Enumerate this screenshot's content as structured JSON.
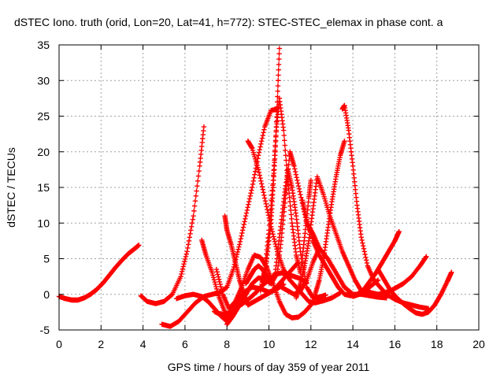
{
  "chart_data": {
    "type": "scatter",
    "title": "dSTEC Iono. truth (orid, Lon=20, Lat=41, h=772): STEC-STEC_elemax in phase cont. a",
    "xlabel": "GPS time / hours of day 359 of year 2011",
    "ylabel": "dSTEC  / TECUs",
    "xlim": [
      0,
      20
    ],
    "ylim": [
      -5,
      35
    ],
    "xticks": [
      0,
      2,
      4,
      6,
      8,
      10,
      12,
      14,
      16,
      18,
      20
    ],
    "yticks": [
      -5,
      0,
      5,
      10,
      15,
      20,
      25,
      30,
      35
    ],
    "grid": true,
    "marker": "plus",
    "color": "#ff0000",
    "series": [
      {
        "x": [
          0.0,
          0.3,
          0.6,
          0.9,
          1.2,
          1.5,
          1.8,
          2.1,
          2.4,
          2.7,
          3.0,
          3.3,
          3.6,
          3.8
        ],
        "y": [
          -0.3,
          -0.6,
          -0.8,
          -0.8,
          -0.5,
          0.0,
          0.7,
          1.6,
          2.7,
          3.8,
          4.8,
          5.7,
          6.4,
          6.9
        ]
      },
      {
        "x": [
          3.9,
          4.2,
          4.6,
          5.0,
          5.4,
          5.8,
          6.1,
          6.4,
          6.7,
          6.9
        ],
        "y": [
          -0.2,
          -1.0,
          -1.3,
          -1.0,
          0.0,
          2.5,
          6.0,
          11.0,
          18.0,
          23.5
        ]
      },
      {
        "x": [
          4.9,
          5.3,
          5.7,
          6.1,
          6.5,
          6.9,
          7.3,
          7.7,
          8.0,
          8.3,
          8.6,
          8.9,
          9.2,
          9.5,
          9.8,
          10.1,
          10.4
        ],
        "y": [
          -4.2,
          -4.5,
          -3.8,
          -2.5,
          -1.2,
          -0.3,
          0.0,
          0.3,
          1.0,
          3.5,
          7.0,
          11.0,
          15.0,
          19.5,
          23.5,
          25.8,
          26.0
        ]
      },
      {
        "x": [
          5.6,
          6.0,
          6.4,
          6.8,
          7.1,
          7.4,
          7.7,
          8.0
        ],
        "y": [
          -0.6,
          -0.2,
          0.0,
          -0.3,
          -1.0,
          -2.0,
          -3.0,
          -3.8
        ]
      },
      {
        "x": [
          6.8,
          7.0,
          7.3,
          7.6,
          7.9,
          8.1,
          8.4,
          8.8,
          9.2,
          9.6,
          10.0,
          10.4,
          10.7
        ],
        "y": [
          7.6,
          5.5,
          3.0,
          -0.2,
          -2.5,
          -3.5,
          -1.5,
          0.3,
          1.0,
          0.8,
          0.3,
          0.8,
          1.4
        ]
      },
      {
        "x": [
          7.4,
          7.6,
          7.9,
          8.2,
          8.5,
          8.8,
          9.1,
          9.4,
          9.7,
          10.0,
          10.3,
          10.6,
          10.9,
          11.2,
          11.5,
          11.8
        ],
        "y": [
          -2.4,
          -2.7,
          -2.8,
          -2.4,
          -1.8,
          -1.2,
          -0.5,
          0.3,
          1.3,
          2.0,
          2.8,
          3.0,
          2.8,
          2.5,
          2.2,
          1.6
        ]
      },
      {
        "x": [
          7.5,
          7.8,
          8.1,
          8.4,
          8.7,
          9.0,
          9.3,
          9.6,
          9.9,
          10.2,
          10.5,
          10.8,
          11.1,
          11.4,
          11.7,
          12.0
        ],
        "y": [
          3.5,
          0.0,
          -2.0,
          -1.0,
          1.0,
          3.5,
          5.5,
          5.2,
          3.8,
          1.5,
          -1.0,
          -2.8,
          -3.3,
          -3.2,
          -2.5,
          -1.5
        ]
      },
      {
        "x": [
          7.9,
          8.0,
          8.2,
          8.4,
          8.6,
          8.8,
          9.0,
          9.3,
          9.6,
          9.9,
          10.2,
          10.5,
          10.8,
          11.1,
          11.4
        ],
        "y": [
          11.0,
          9.0,
          7.0,
          4.5,
          2.0,
          0.0,
          -1.5,
          -1.0,
          -0.5,
          0.0,
          0.5,
          1.5,
          2.5,
          3.5,
          4.5
        ]
      },
      {
        "x": [
          8.0,
          8.3,
          8.6,
          8.9,
          9.2,
          9.5,
          9.8,
          10.1,
          10.4,
          10.6,
          10.8,
          11.0,
          11.2,
          11.5,
          11.8,
          12.1,
          12.4,
          12.8,
          13.2,
          13.6,
          14.0
        ],
        "y": [
          -4.2,
          -3.0,
          -1.5,
          0.0,
          1.5,
          2.3,
          2.1,
          1.5,
          3.0,
          8.0,
          14.0,
          20.0,
          18.0,
          14.0,
          10.0,
          8.5,
          6.5,
          5.0,
          3.0,
          1.0,
          0.0
        ]
      },
      {
        "x": [
          8.9,
          9.1,
          9.3,
          9.5,
          9.7,
          9.9,
          10.1,
          10.3,
          10.5,
          10.7,
          10.9,
          11.1,
          11.3,
          11.5,
          11.8,
          12.1,
          12.4,
          12.7
        ],
        "y": [
          1.5,
          2.5,
          3.5,
          4.0,
          3.5,
          2.5,
          1.5,
          3.0,
          8.0,
          13.0,
          17.5,
          15.0,
          11.0,
          6.0,
          1.0,
          -0.5,
          -0.4,
          -0.1
        ]
      },
      {
        "x": [
          9.0,
          9.2,
          9.5,
          9.8,
          10.1,
          10.4,
          10.7,
          11.0,
          11.3,
          11.6,
          11.9,
          12.2,
          12.6,
          13.0,
          13.4
        ],
        "y": [
          21.5,
          20.5,
          17.5,
          13.5,
          9.5,
          6.0,
          3.5,
          2.0,
          1.0,
          0.0,
          -1.0,
          -1.2,
          -0.9,
          -0.5,
          0.2
        ]
      },
      {
        "x": [
          9.6,
          9.8,
          10.0,
          10.2,
          10.35,
          10.5,
          10.7,
          10.9,
          11.1,
          11.3,
          11.5
        ],
        "y": [
          0.5,
          3.5,
          9.0,
          16.0,
          23.0,
          27.5,
          23.0,
          16.0,
          10.0,
          5.5,
          3.0
        ]
      },
      {
        "x": [
          9.7,
          9.9,
          10.1,
          10.2,
          10.3,
          10.4,
          10.5
        ],
        "y": [
          1.8,
          5.0,
          10.0,
          15.0,
          20.0,
          27.0,
          34.5
        ]
      },
      {
        "x": [
          10.6,
          10.9,
          11.2,
          11.5,
          11.8,
          12.1,
          12.4,
          12.8,
          13.2,
          13.6,
          14.0,
          14.4,
          14.8,
          15.2,
          15.6
        ],
        "y": [
          1.0,
          0.5,
          0.0,
          0.5,
          2.0,
          4.5,
          6.5,
          5.0,
          3.0,
          1.0,
          0.0,
          0.0,
          -0.2,
          -0.4,
          -0.5
        ]
      },
      {
        "x": [
          11.3,
          11.5,
          11.7,
          11.9,
          12.1,
          12.3,
          12.6,
          12.9,
          13.2,
          13.5,
          13.8,
          14.1,
          14.4,
          14.8,
          15.2
        ],
        "y": [
          -0.5,
          1.5,
          4.0,
          7.5,
          12.0,
          16.5,
          14.0,
          11.0,
          8.5,
          6.0,
          4.0,
          2.0,
          0.5,
          1.0,
          2.0
        ]
      },
      {
        "x": [
          11.5,
          11.7,
          11.9,
          12.0
        ],
        "y": [
          3.0,
          8.0,
          13.5,
          16.0
        ]
      },
      {
        "x": [
          11.6,
          11.8,
          12.1,
          12.4,
          12.7,
          13.0,
          13.3,
          13.6,
          13.9,
          14.2,
          14.5,
          14.8,
          15.1,
          15.4,
          15.7,
          16.0,
          16.2
        ],
        "y": [
          13.2,
          10.5,
          7.5,
          5.5,
          4.0,
          2.5,
          1.0,
          0.0,
          -0.2,
          0.0,
          0.6,
          1.8,
          3.0,
          4.5,
          6.0,
          7.5,
          8.8
        ]
      },
      {
        "x": [
          12.2,
          12.4,
          12.6,
          12.8,
          13.0,
          13.2,
          13.4,
          13.6
        ],
        "y": [
          0.0,
          2.0,
          5.0,
          9.0,
          13.0,
          16.5,
          19.5,
          21.5
        ]
      },
      {
        "x": [
          13.5,
          13.6,
          13.8,
          14.0,
          14.2,
          14.4,
          14.7,
          15.0,
          15.3,
          15.6,
          16.0,
          16.4,
          16.8,
          17.2,
          17.6
        ],
        "y": [
          26.0,
          26.5,
          23.0,
          18.0,
          12.5,
          8.0,
          4.0,
          2.0,
          1.0,
          0.0,
          -0.7,
          -1.2,
          -1.5,
          -1.8,
          -2.0
        ]
      },
      {
        "x": [
          14.0,
          14.3,
          14.6,
          14.9,
          15.2,
          15.5,
          15.8,
          16.1,
          16.4,
          16.8,
          17.2,
          17.5
        ],
        "y": [
          -0.3,
          0.0,
          0.5,
          0.2,
          0.0,
          0.2,
          0.5,
          1.0,
          1.5,
          2.5,
          4.0,
          5.3
        ]
      },
      {
        "x": [
          15.2,
          15.5,
          15.8,
          16.1,
          16.4,
          16.7,
          17.0,
          17.3,
          17.6,
          17.9,
          18.2,
          18.5,
          18.7
        ],
        "y": [
          3.5,
          2.0,
          0.5,
          -0.5,
          -1.3,
          -2.0,
          -2.6,
          -2.8,
          -2.5,
          -1.5,
          0.0,
          1.8,
          3.1
        ]
      }
    ]
  }
}
